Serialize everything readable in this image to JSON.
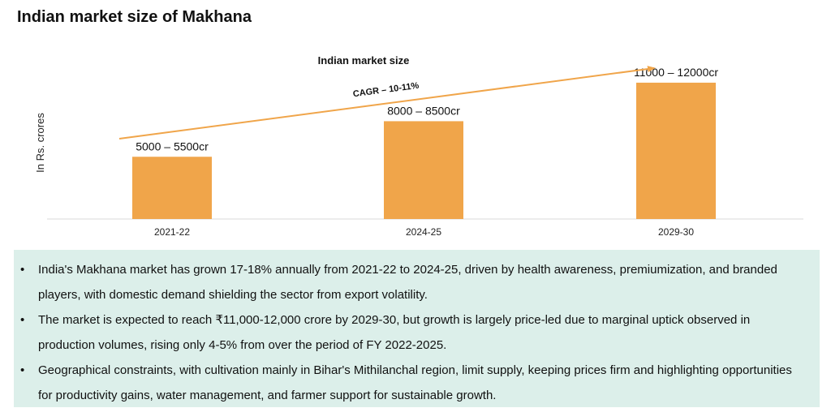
{
  "page": {
    "title": "Indian market size of Makhana"
  },
  "chart_data": {
    "type": "bar",
    "title": "Indian market size",
    "ylabel": "In Rs. crores",
    "xlabel": "",
    "categories": [
      "2021-22",
      "2024-25",
      "2029-30"
    ],
    "values": [
      5250,
      8250,
      11500
    ],
    "value_labels": [
      "5000 – 5500cr",
      "8000 – 8500cr",
      "11000 – 12000cr"
    ],
    "ylim": [
      0,
      13000
    ],
    "bar_color": "#f0a54a",
    "annotation": {
      "text": "CAGR – 10-11%",
      "type": "trend-arrow",
      "color": "#f0a54a"
    },
    "grid": false,
    "legend": "none"
  },
  "notes": {
    "bullet": "•",
    "items": [
      "India's Makhana market has grown 17-18% annually from 2021-22 to 2024-25, driven by health awareness, premiumization, and branded players, with domestic demand shielding the sector from export volatility.",
      "The market is expected to reach ₹11,000-12,000 crore by 2029-30, but growth is largely price-led due to marginal uptick observed in production volumes, rising only 4-5% from over the period of FY 2022-2025.",
      "Geographical constraints, with cultivation mainly in Bihar's Mithilanchal region, limit supply, keeping prices firm and highlighting opportunities for productivity gains, water management, and farmer support for sustainable growth."
    ],
    "background": "#dcefea"
  }
}
